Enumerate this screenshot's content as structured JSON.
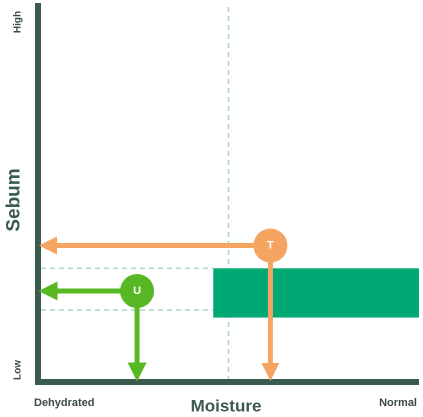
{
  "chart_data": {
    "type": "scatter",
    "xlabel": "Moisture",
    "ylabel": "Sebum",
    "x_tick_labels": {
      "min": "Dehydrated",
      "max": "Normal"
    },
    "y_tick_labels": {
      "min": "Low",
      "max": "High"
    },
    "xlim": [
      0,
      100
    ],
    "ylim": [
      0,
      100
    ],
    "grid": false,
    "reference_line_x": 50,
    "band": {
      "x_start": 46,
      "x_end": 100,
      "y_start": 17,
      "y_end": 30
    },
    "points": [
      {
        "label": "T",
        "x": 61,
        "y": 36
      },
      {
        "label": "U",
        "x": 26,
        "y": 24
      }
    ],
    "guide_y_levels": [
      30,
      19
    ]
  },
  "colors": {
    "axis": "#3a5a50",
    "band": "#00a874",
    "point_T": "#f5a462",
    "point_U": "#57b824",
    "guide_dashed": "#a8d8c4",
    "axis_text": "#3a4a46"
  }
}
